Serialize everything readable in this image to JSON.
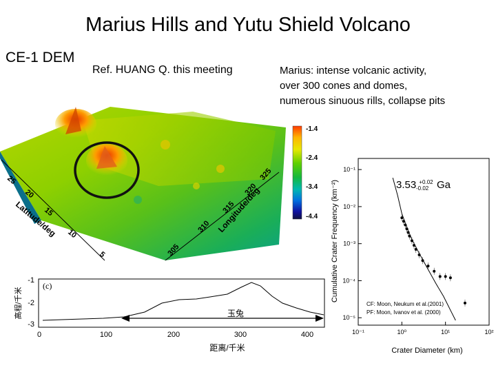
{
  "slide": {
    "title": "Marius Hills and Yutu Shield Volcano",
    "dem_label": "CE-1 DEM",
    "reference": "Ref.  HUANG Q. this meeting",
    "description": [
      "Marius: intense volcanic activity,",
      "over 300 cones and domes,",
      "numerous sinuous rills, collapse pits"
    ]
  },
  "dem_map": {
    "latitude_axis_label": "Latitude/deg",
    "longitude_axis_label": "Longitude/deg",
    "latitude_ticks": [
      "25",
      "20",
      "15",
      "10",
      "5"
    ],
    "longitude_ticks": [
      "305",
      "310",
      "315",
      "320",
      "325"
    ],
    "colorbar": {
      "ticks": [
        "-1.4",
        "-2.4",
        "-3.4",
        "-4.4"
      ],
      "colors": [
        "#ff3b00",
        "#ffb400",
        "#e8e800",
        "#5fd000",
        "#15b83c",
        "#00b8b0",
        "#0070e0",
        "#1010a0",
        "#101040"
      ]
    },
    "circle_color": "#111111"
  },
  "profile_chart": {
    "type": "line",
    "panel_label": "(c)",
    "ylabel": "高程/千米",
    "xlabel": "距离/千米",
    "yticks": [
      "-1",
      "-2",
      "-3"
    ],
    "xticks": [
      "0",
      "100",
      "200",
      "300",
      "400"
    ],
    "arrow_label": "玉兔"
  },
  "chart_data": {
    "type": "scatter",
    "annotation": "3.53",
    "annotation_sup": "+0.02",
    "annotation_sub": "-0.02",
    "annotation_unit": "Ga",
    "xlabel": "Crater Diameter (km)",
    "ylabel": "Cumulative Crater Frequency (km⁻²)",
    "x_ticks": [
      "10⁻¹",
      "10⁰",
      "10¹",
      "10²"
    ],
    "y_ticks": [
      "10⁻¹",
      "10⁻²",
      "10⁻³",
      "10⁻⁴",
      "10⁻⁵"
    ],
    "legend": [
      "CF: Moon, Neukum et al.(2001)",
      "PF: Moon, Ivanov et al. (2000)"
    ],
    "xlim_log10": [
      -1,
      2
    ],
    "ylim_log10": [
      -5.2,
      -0.7
    ],
    "points": [
      {
        "d": 1.0,
        "n": 0.005
      },
      {
        "d": 1.1,
        "n": 0.004
      },
      {
        "d": 1.2,
        "n": 0.0032
      },
      {
        "d": 1.3,
        "n": 0.0025
      },
      {
        "d": 1.4,
        "n": 0.002
      },
      {
        "d": 1.5,
        "n": 0.0016
      },
      {
        "d": 1.7,
        "n": 0.0012
      },
      {
        "d": 1.9,
        "n": 0.0009
      },
      {
        "d": 2.1,
        "n": 0.0007
      },
      {
        "d": 2.5,
        "n": 0.0005
      },
      {
        "d": 3.0,
        "n": 0.00035
      },
      {
        "d": 4.0,
        "n": 0.00025
      },
      {
        "d": 5.5,
        "n": 0.00018
      },
      {
        "d": 7.5,
        "n": 0.00013
      },
      {
        "d": 10.0,
        "n": 0.00013
      },
      {
        "d": 13.0,
        "n": 0.00012
      },
      {
        "d": 28.0,
        "n": 2.5e-05
      }
    ],
    "fit_curve": [
      {
        "d": 0.62,
        "n": 0.06
      },
      {
        "d": 0.8,
        "n": 0.02
      },
      {
        "d": 1.0,
        "n": 0.0065
      },
      {
        "d": 1.3,
        "n": 0.0028
      },
      {
        "d": 1.7,
        "n": 0.0013
      },
      {
        "d": 2.5,
        "n": 0.00055
      },
      {
        "d": 4.0,
        "n": 0.0002
      },
      {
        "d": 6.0,
        "n": 8.5e-05
      },
      {
        "d": 9.0,
        "n": 3.8e-05
      },
      {
        "d": 13.0,
        "n": 1.6e-05
      },
      {
        "d": 17.0,
        "n": 8.5e-06
      }
    ]
  }
}
